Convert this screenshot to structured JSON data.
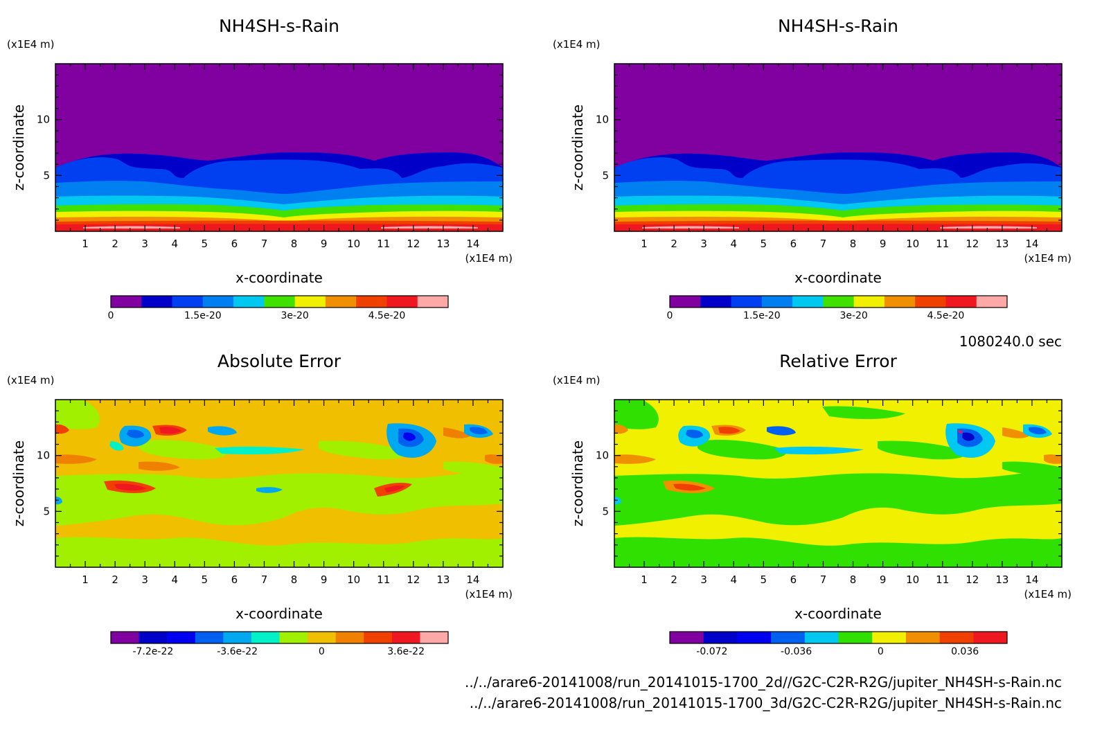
{
  "footer": {
    "time_label": "1080240.0 sec",
    "file_2d": "../../arare6-20141008/run_20141015-1700_2d//G2C-C2R-R2G/jupiter_NH4SH-s-Rain.nc",
    "file_3d": "../../arare6-20141008/run_20141015-1700_3d/G2C-C2R-R2G/jupiter_NH4SH-s-Rain.nc"
  },
  "chart_data": [
    {
      "type": "heatmap",
      "id": "2d",
      "title": "NH4SH-s-Rain",
      "xlabel": "x-coordinate",
      "ylabel": "z-coordinate",
      "x_unit": "(x1E4 m)",
      "y_unit": "(x1E4 m)",
      "xlim": [
        0,
        15
      ],
      "ylim": [
        0,
        15
      ],
      "x_ticks": [
        1,
        2,
        3,
        4,
        5,
        6,
        7,
        8,
        9,
        10,
        11,
        12,
        13,
        14
      ],
      "y_ticks": [
        5,
        10
      ],
      "colorbar": {
        "colors": [
          "#8000a0",
          "#0000c8",
          "#0040f0",
          "#0080f0",
          "#00c8f0",
          "#40e000",
          "#f0f000",
          "#f09000",
          "#f04000",
          "#f01820",
          "#ffa8a8"
        ],
        "tick_labels": [
          "0",
          "1.5e-20",
          "3e-20",
          "4.5e-20"
        ],
        "tick_values": [
          0,
          1.5e-20,
          3e-20,
          4.5e-20
        ],
        "range": [
          0,
          5.5e-20
        ]
      }
    },
    {
      "type": "heatmap",
      "id": "3d",
      "title": "NH4SH-s-Rain",
      "xlabel": "x-coordinate",
      "ylabel": "z-coordinate",
      "x_unit": "(x1E4 m)",
      "y_unit": "(x1E4 m)",
      "xlim": [
        0,
        15
      ],
      "ylim": [
        0,
        15
      ],
      "x_ticks": [
        1,
        2,
        3,
        4,
        5,
        6,
        7,
        8,
        9,
        10,
        11,
        12,
        13,
        14
      ],
      "y_ticks": [
        5,
        10
      ],
      "colorbar": {
        "colors": [
          "#8000a0",
          "#0000c8",
          "#0040f0",
          "#0080f0",
          "#00c8f0",
          "#40e000",
          "#f0f000",
          "#f09000",
          "#f04000",
          "#f01820",
          "#ffa8a8"
        ],
        "tick_labels": [
          "0",
          "1.5e-20",
          "3e-20",
          "4.5e-20"
        ],
        "tick_values": [
          0,
          1.5e-20,
          3e-20,
          4.5e-20
        ],
        "range": [
          0,
          5.5e-20
        ]
      }
    },
    {
      "type": "heatmap",
      "id": "abs",
      "title": "Absolute Error",
      "xlabel": "x-coordinate",
      "ylabel": "z-coordinate",
      "x_unit": "(x1E4 m)",
      "y_unit": "(x1E4 m)",
      "xlim": [
        0,
        15
      ],
      "ylim": [
        0,
        15
      ],
      "x_ticks": [
        1,
        2,
        3,
        4,
        5,
        6,
        7,
        8,
        9,
        10,
        11,
        12,
        13,
        14
      ],
      "y_ticks": [
        5,
        10
      ],
      "colorbar": {
        "colors": [
          "#8000a0",
          "#0000c8",
          "#0000f0",
          "#0060f0",
          "#00a8f0",
          "#00f0c8",
          "#a0f000",
          "#f0c000",
          "#f08000",
          "#f04000",
          "#f01820",
          "#ffa8a8"
        ],
        "tick_labels": [
          "-7.2e-22",
          "-3.6e-22",
          "0",
          "3.6e-22"
        ],
        "tick_values": [
          -7.2e-22,
          -3.6e-22,
          0,
          3.6e-22
        ],
        "range": [
          -9e-22,
          5.4e-22
        ]
      }
    },
    {
      "type": "heatmap",
      "id": "rel",
      "title": "Relative Error",
      "xlabel": "x-coordinate",
      "ylabel": "z-coordinate",
      "x_unit": "(x1E4 m)",
      "y_unit": "(x1E4 m)",
      "xlim": [
        0,
        15
      ],
      "ylim": [
        0,
        15
      ],
      "x_ticks": [
        1,
        2,
        3,
        4,
        5,
        6,
        7,
        8,
        9,
        10,
        11,
        12,
        13,
        14
      ],
      "y_ticks": [
        5,
        10
      ],
      "colorbar": {
        "colors": [
          "#8000a0",
          "#0000c8",
          "#0000f0",
          "#0060f0",
          "#00c8f0",
          "#30e000",
          "#f0f000",
          "#f09000",
          "#f04000",
          "#f01820"
        ],
        "tick_labels": [
          "-0.072",
          "-0.036",
          "0",
          "0.036"
        ],
        "tick_values": [
          -0.072,
          -0.036,
          0,
          0.036
        ],
        "range": [
          -0.09,
          0.054
        ]
      }
    }
  ]
}
